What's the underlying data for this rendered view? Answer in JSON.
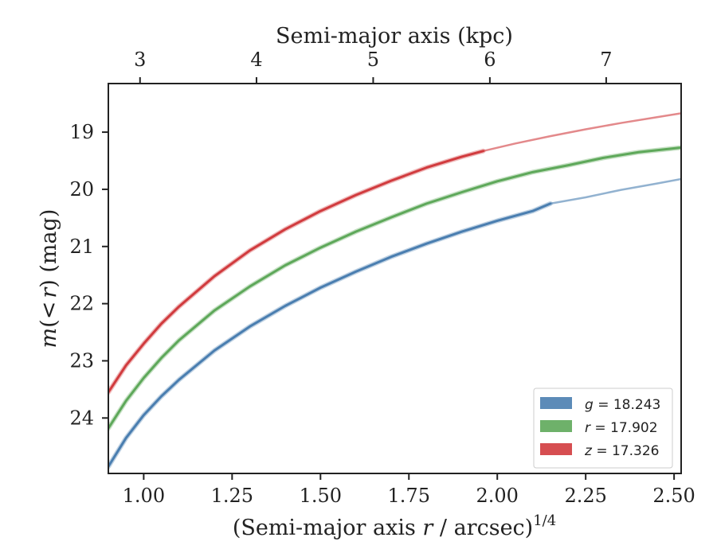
{
  "chart_data": {
    "type": "line",
    "title": "",
    "xlabel": "(Semi-major axis r / arcsec)^1/4",
    "xlabel_parts": {
      "pre": "(Semi-major axis ",
      "var": "r",
      "post": " / arcsec)",
      "sup": "1/4"
    },
    "ylabel": "m(< r) (mag)",
    "ylabel_parts": {
      "m": "m",
      "open": "(",
      "lt": "<",
      "r": "r",
      "close": ")",
      "unit": " (mag)"
    },
    "xlabel_top": "Semi-major axis (kpc)",
    "xlim": [
      0.9,
      2.52
    ],
    "ylim": [
      24.97,
      18.15
    ],
    "y_inverted": true,
    "x_ticks": [
      1.0,
      1.25,
      1.5,
      1.75,
      2.0,
      2.25,
      2.5
    ],
    "x_tick_labels": [
      "1.00",
      "1.25",
      "1.50",
      "1.75",
      "2.00",
      "2.25",
      "2.50"
    ],
    "y_ticks": [
      19,
      20,
      21,
      22,
      23,
      24
    ],
    "y_tick_labels": [
      "19",
      "20",
      "21",
      "22",
      "23",
      "24"
    ],
    "top_ticks": [
      {
        "x": 0.9896,
        "label": "3"
      },
      {
        "x": 1.319,
        "label": "4"
      },
      {
        "x": 1.649,
        "label": "5"
      },
      {
        "x": 1.979,
        "label": "6"
      },
      {
        "x": 2.308,
        "label": "7"
      }
    ],
    "legend_position": "lower-right",
    "grid": false,
    "series": [
      {
        "name": "g = 18.243",
        "name_var": "g",
        "name_value": "18.243",
        "color": "#4a7eb0",
        "x": [
          0.9,
          0.95,
          1.0,
          1.05,
          1.1,
          1.2,
          1.3,
          1.4,
          1.5,
          1.6,
          1.7,
          1.8,
          1.9,
          2.0,
          2.1,
          2.15
        ],
        "y": [
          24.85,
          24.35,
          23.95,
          23.62,
          23.33,
          22.82,
          22.4,
          22.04,
          21.72,
          21.44,
          21.18,
          20.95,
          20.74,
          20.55,
          20.38,
          20.25
        ],
        "extrapolated_x": [
          2.15,
          2.25,
          2.35,
          2.45,
          2.52
        ],
        "extrapolated_y": [
          20.25,
          20.14,
          20.01,
          19.9,
          19.82
        ]
      },
      {
        "name": "r = 17.902",
        "name_var": "r",
        "name_value": "17.902",
        "color": "#5ea85a",
        "x": [
          0.9,
          0.95,
          1.0,
          1.05,
          1.1,
          1.2,
          1.3,
          1.4,
          1.5,
          1.6,
          1.7,
          1.8,
          1.9,
          2.0,
          2.1,
          2.2,
          2.3,
          2.4,
          2.52
        ],
        "y": [
          24.18,
          23.7,
          23.3,
          22.95,
          22.64,
          22.12,
          21.7,
          21.33,
          21.02,
          20.74,
          20.49,
          20.25,
          20.05,
          19.86,
          19.7,
          19.58,
          19.45,
          19.35,
          19.27
        ],
        "extrapolated_x": [],
        "extrapolated_y": []
      },
      {
        "name": "z = 17.326",
        "name_var": "z",
        "name_value": "17.326",
        "color": "#d13b3e",
        "x": [
          0.9,
          0.95,
          1.0,
          1.05,
          1.1,
          1.2,
          1.3,
          1.4,
          1.5,
          1.6,
          1.7,
          1.8,
          1.9,
          1.96
        ],
        "y": [
          23.55,
          23.08,
          22.7,
          22.35,
          22.05,
          21.52,
          21.07,
          20.7,
          20.38,
          20.1,
          19.85,
          19.62,
          19.43,
          19.33
        ],
        "extrapolated_x": [
          1.96,
          2.05,
          2.15,
          2.25,
          2.35,
          2.45,
          2.52
        ],
        "extrapolated_y": [
          19.33,
          19.2,
          19.07,
          18.95,
          18.84,
          18.74,
          18.67
        ]
      }
    ]
  }
}
